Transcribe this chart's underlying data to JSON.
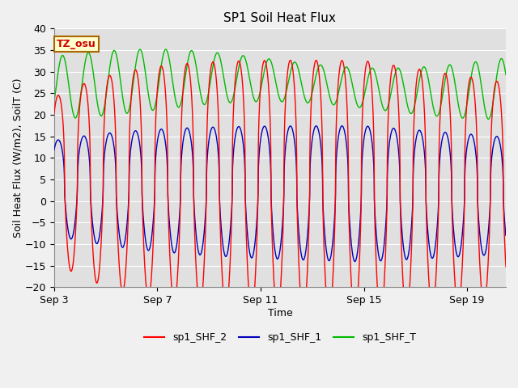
{
  "title": "SP1 Soil Heat Flux",
  "xlabel": "Time",
  "ylabel": "Soil Heat Flux (W/m2), SoilT (C)",
  "ylim": [
    -20,
    40
  ],
  "yticks": [
    -20,
    -15,
    -10,
    -5,
    0,
    5,
    10,
    15,
    20,
    25,
    30,
    35,
    40
  ],
  "xtick_labels": [
    "Sep 3",
    "Sep 7",
    "Sep 11",
    "Sep 15",
    "Sep 19"
  ],
  "xtick_positions": [
    0,
    4,
    8,
    12,
    16
  ],
  "annotation_text": "TZ_osu",
  "annotation_color": "#cc0000",
  "annotation_bg": "#ffffcc",
  "annotation_border": "#aa6600",
  "line_colors": [
    "#ff0000",
    "#0000bb",
    "#00bb00"
  ],
  "line_labels": [
    "sp1_SHF_2",
    "sp1_SHF_1",
    "sp1_SHF_T"
  ],
  "plot_bg": "#e0e0e0",
  "fig_bg": "#f0f0f0",
  "xlim": [
    0,
    17.5
  ],
  "n_points": 10000
}
